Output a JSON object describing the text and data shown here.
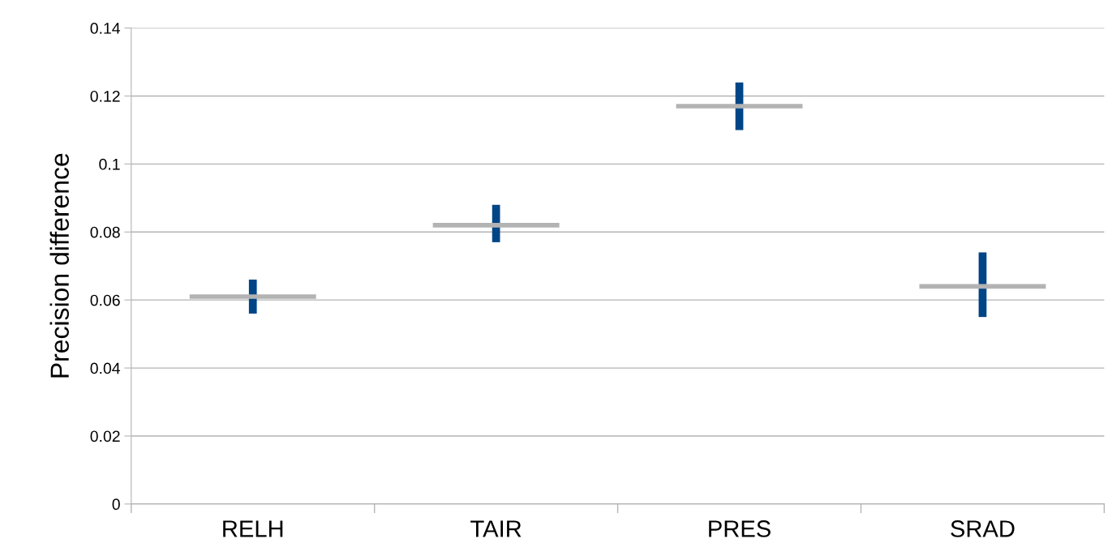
{
  "chart_data": {
    "type": "box",
    "ylabel": "Precision difference",
    "categories": [
      "RELH",
      "TAIR",
      "PRES",
      "SRAD"
    ],
    "series": [
      {
        "color": "#004586",
        "colors": [
          "#b3b3b3",
          "#b3b3b3",
          "#b3b3b3",
          "#b3b3b3"
        ],
        "boxes": [
          {
            "low": 0.056,
            "q1": 0.061,
            "median": 0.061,
            "q3": 0.061,
            "high": 0.066
          },
          {
            "low": 0.077,
            "q1": 0.082,
            "median": 0.082,
            "q3": 0.082,
            "high": 0.088
          },
          {
            "low": 0.11,
            "q1": 0.117,
            "median": 0.117,
            "q3": 0.117,
            "high": 0.124
          },
          {
            "low": 0.055,
            "q1": 0.064,
            "median": 0.064,
            "q3": 0.064,
            "high": 0.074
          }
        ]
      }
    ],
    "ylim": [
      0,
      0.14
    ],
    "yticks": [
      0,
      0.02,
      0.04,
      0.06,
      0.08,
      0.1,
      0.12,
      0.14
    ],
    "grid": "y"
  }
}
